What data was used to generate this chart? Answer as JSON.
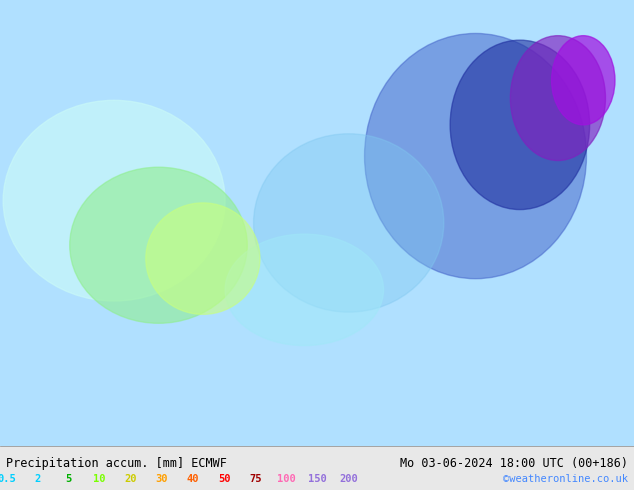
{
  "title_left": "Precipitation accum. [mm] ECMWF",
  "title_right": "Mo 03-06-2024 18:00 UTC (00+186)",
  "credit": "©weatheronline.co.uk",
  "colorbar_labels": [
    "0.5",
    "2",
    "5",
    "10",
    "20",
    "30",
    "40",
    "50",
    "75",
    "100",
    "150",
    "200"
  ],
  "colorbar_colors": [
    "#a0ffff",
    "#00cfff",
    "#00af00",
    "#79ff00",
    "#ffff00",
    "#ffcf00",
    "#ff9f00",
    "#ff6000",
    "#ff0000",
    "#cf0000",
    "#9f0000",
    "#ff00ff",
    "#9b30ff"
  ],
  "bg_color": "#e8e8e8",
  "map_bg": "#b0e0ff",
  "label_color_low": "#00cfff",
  "label_color_mid": "#ff69b4",
  "label_color_high": "#9370db",
  "bottom_bar_color": "#d8d8d8",
  "text_color_left": "#000000",
  "text_color_right": "#000000"
}
